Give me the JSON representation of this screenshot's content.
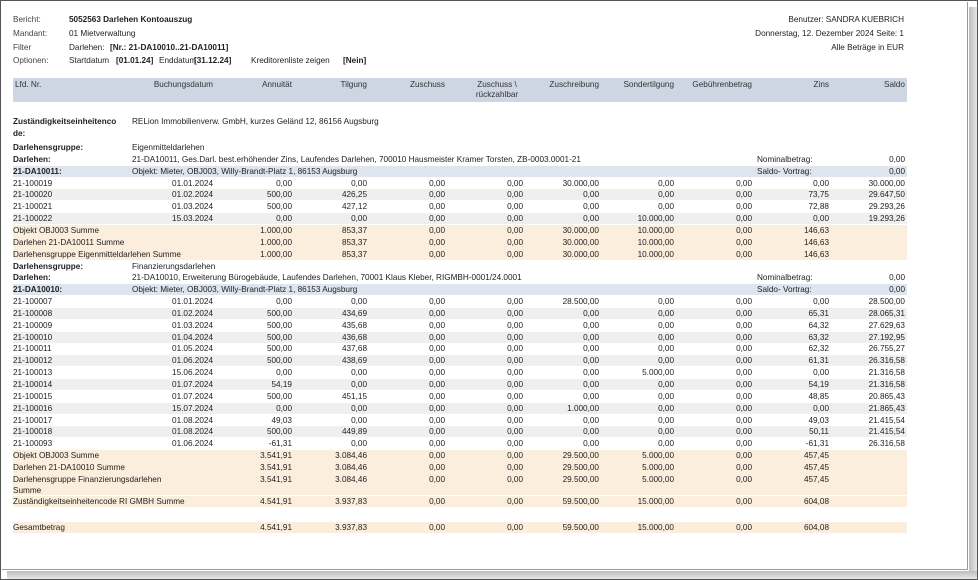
{
  "header": {
    "bericht_label": "Bericht:",
    "bericht_value": "5052563 Darlehen Kontoauszug",
    "mandant_label": "Mandant:",
    "mandant_value": "01 Mietverwaltung",
    "filter_label": "Filter",
    "filter_prefix": "Darlehen:",
    "filter_value": "[Nr.: 21-DA10010..21-DA10011]",
    "optionen_label": "Optionen:",
    "opt_start_label": "Startdatum",
    "opt_start_value": "[01.01.24]",
    "opt_end_label": "Enddatum",
    "opt_end_value": "[31.12.24]",
    "opt_kred_label": "Kreditorenliste zeigen",
    "opt_kred_value": "[Nein]",
    "benutzer": "Benutzer: SANDRA KUEBRICH",
    "datum": "Donnerstag, 12. Dezember 2024 Seite: 1",
    "waehrung": "Alle Beträge in EUR"
  },
  "columns": {
    "lfd": "Lfd. Nr.",
    "buchungsdatum": "Buchungsdatum",
    "annuitaet": "Annuität",
    "tilgung": "Tilgung",
    "zuschuss": "Zuschuss",
    "zuschuss_rz_1": "Zuschuss \\",
    "zuschuss_rz_2": "rückzahlbar",
    "zuschreibung": "Zuschreibung",
    "sondertilgung": "Sondertilgung",
    "gebuehren": "Gebührenbetrag",
    "zins": "Zins",
    "saldo": "Saldo"
  },
  "zust": {
    "label_1": "Zuständigkeitseinheitenco",
    "label_2": "de:",
    "value": "RELion Immobilienverw. GmbH, kurzes Geländ 12, 86156 Augsburg"
  },
  "groups": [
    {
      "gruppe_label": "Darlehensgruppe:",
      "gruppe_value": "Eigenmitteldarlehen",
      "darlehen_label": "Darlehen:",
      "darlehen_value": "21-DA10011, Ges.Darl. best.erhöhender Zins, Laufendes Darlehen, 700010 Hausmeister Kramer Torsten, ZB-0003.0001-21",
      "nominal_label": "Nominalbetrag:",
      "nominal_value": "0,00",
      "objekt_nr": "21-DA10011:",
      "objekt_value": "Objekt: Mieter, OBJ003, Willy-Brandt-Platz 1, 86153 Augsburg",
      "saldo_vortrag_label": "Saldo- Vortrag:",
      "saldo_vortrag_value": "0,00",
      "rows": [
        {
          "nr": "21-100019",
          "datum": "01.01.2024",
          "ann": "0,00",
          "til": "0,00",
          "zus": "0,00",
          "zrz": "0,00",
          "zsch": "30.000,00",
          "sond": "0,00",
          "geb": "0,00",
          "zins": "0,00",
          "saldo": "30.000,00"
        },
        {
          "nr": "21-100020",
          "datum": "01.02.2024",
          "ann": "500,00",
          "til": "426,25",
          "zus": "0,00",
          "zrz": "0,00",
          "zsch": "0,00",
          "sond": "0,00",
          "geb": "0,00",
          "zins": "73,75",
          "saldo": "29.647,50"
        },
        {
          "nr": "21-100021",
          "datum": "01.03.2024",
          "ann": "500,00",
          "til": "427,12",
          "zus": "0,00",
          "zrz": "0,00",
          "zsch": "0,00",
          "sond": "0,00",
          "geb": "0,00",
          "zins": "72,88",
          "saldo": "29.293,26"
        },
        {
          "nr": "21-100022",
          "datum": "15.03.2024",
          "ann": "0,00",
          "til": "0,00",
          "zus": "0,00",
          "zrz": "0,00",
          "zsch": "0,00",
          "sond": "10.000,00",
          "geb": "0,00",
          "zins": "0,00",
          "saldo": "19.293,26"
        }
      ],
      "sums": [
        {
          "label": "Objekt OBJ003 Summe",
          "ann": "1.000,00",
          "til": "853,37",
          "zus": "0,00",
          "zrz": "0,00",
          "zsch": "30.000,00",
          "sond": "10.000,00",
          "geb": "0,00",
          "zins": "146,63"
        },
        {
          "label": "Darlehen 21-DA10011 Summe",
          "ann": "1.000,00",
          "til": "853,37",
          "zus": "0,00",
          "zrz": "0,00",
          "zsch": "30.000,00",
          "sond": "10.000,00",
          "geb": "0,00",
          "zins": "146,63"
        },
        {
          "label": "Darlehensgruppe Eigenmitteldarlehen Summe",
          "ann": "1.000,00",
          "til": "853,37",
          "zus": "0,00",
          "zrz": "0,00",
          "zsch": "30.000,00",
          "sond": "10.000,00",
          "geb": "0,00",
          "zins": "146,63"
        }
      ]
    },
    {
      "gruppe_label": "Darlehensgruppe:",
      "gruppe_value": "Finanzierungsdarlehen",
      "darlehen_label": "Darlehen:",
      "darlehen_value": "21-DA10010, Erweiterung Bürogebäude, Laufendes Darlehen, 70001 Klaus Kleber, RIGMBH-0001/24.0001",
      "nominal_label": "Nominalbetrag:",
      "nominal_value": "0,00",
      "objekt_nr": "21-DA10010:",
      "objekt_value": "Objekt: Mieter, OBJ003, Willy-Brandt-Platz 1, 86153 Augsburg",
      "saldo_vortrag_label": "Saldo- Vortrag:",
      "saldo_vortrag_value": "0,00",
      "rows": [
        {
          "nr": "21-100007",
          "datum": "01.01.2024",
          "ann": "0,00",
          "til": "0,00",
          "zus": "0,00",
          "zrz": "0,00",
          "zsch": "28.500,00",
          "sond": "0,00",
          "geb": "0,00",
          "zins": "0,00",
          "saldo": "28.500,00"
        },
        {
          "nr": "21-100008",
          "datum": "01.02.2024",
          "ann": "500,00",
          "til": "434,69",
          "zus": "0,00",
          "zrz": "0,00",
          "zsch": "0,00",
          "sond": "0,00",
          "geb": "0,00",
          "zins": "65,31",
          "saldo": "28.065,31"
        },
        {
          "nr": "21-100009",
          "datum": "01.03.2024",
          "ann": "500,00",
          "til": "435,68",
          "zus": "0,00",
          "zrz": "0,00",
          "zsch": "0,00",
          "sond": "0,00",
          "geb": "0,00",
          "zins": "64,32",
          "saldo": "27.629,63"
        },
        {
          "nr": "21-100010",
          "datum": "01.04.2024",
          "ann": "500,00",
          "til": "436,68",
          "zus": "0,00",
          "zrz": "0,00",
          "zsch": "0,00",
          "sond": "0,00",
          "geb": "0,00",
          "zins": "63,32",
          "saldo": "27.192,95"
        },
        {
          "nr": "21-100011",
          "datum": "01.05.2024",
          "ann": "500,00",
          "til": "437,68",
          "zus": "0,00",
          "zrz": "0,00",
          "zsch": "0,00",
          "sond": "0,00",
          "geb": "0,00",
          "zins": "62,32",
          "saldo": "26.755,27"
        },
        {
          "nr": "21-100012",
          "datum": "01.06.2024",
          "ann": "500,00",
          "til": "438,69",
          "zus": "0,00",
          "zrz": "0,00",
          "zsch": "0,00",
          "sond": "0,00",
          "geb": "0,00",
          "zins": "61,31",
          "saldo": "26.316,58"
        },
        {
          "nr": "21-100013",
          "datum": "15.06.2024",
          "ann": "0,00",
          "til": "0,00",
          "zus": "0,00",
          "zrz": "0,00",
          "zsch": "0,00",
          "sond": "5.000,00",
          "geb": "0,00",
          "zins": "0,00",
          "saldo": "21.316,58"
        },
        {
          "nr": "21-100014",
          "datum": "01.07.2024",
          "ann": "54,19",
          "til": "0,00",
          "zus": "0,00",
          "zrz": "0,00",
          "zsch": "0,00",
          "sond": "0,00",
          "geb": "0,00",
          "zins": "54,19",
          "saldo": "21.316,58"
        },
        {
          "nr": "21-100015",
          "datum": "01.07.2024",
          "ann": "500,00",
          "til": "451,15",
          "zus": "0,00",
          "zrz": "0,00",
          "zsch": "0,00",
          "sond": "0,00",
          "geb": "0,00",
          "zins": "48,85",
          "saldo": "20.865,43"
        },
        {
          "nr": "21-100016",
          "datum": "15.07.2024",
          "ann": "0,00",
          "til": "0,00",
          "zus": "0,00",
          "zrz": "0,00",
          "zsch": "1.000,00",
          "sond": "0,00",
          "geb": "0,00",
          "zins": "0,00",
          "saldo": "21.865,43"
        },
        {
          "nr": "21-100017",
          "datum": "01.08.2024",
          "ann": "49,03",
          "til": "0,00",
          "zus": "0,00",
          "zrz": "0,00",
          "zsch": "0,00",
          "sond": "0,00",
          "geb": "0,00",
          "zins": "49,03",
          "saldo": "21.415,54"
        },
        {
          "nr": "21-100018",
          "datum": "01.08.2024",
          "ann": "500,00",
          "til": "449,89",
          "zus": "0,00",
          "zrz": "0,00",
          "zsch": "0,00",
          "sond": "0,00",
          "geb": "0,00",
          "zins": "50,11",
          "saldo": "21.415,54"
        },
        {
          "nr": "21-100093",
          "datum": "01.06.2024",
          "ann": "-61,31",
          "til": "0,00",
          "zus": "0,00",
          "zrz": "0,00",
          "zsch": "0,00",
          "sond": "0,00",
          "geb": "0,00",
          "zins": "-61,31",
          "saldo": "26.316,58"
        }
      ],
      "sums": [
        {
          "label": "Objekt OBJ003 Summe",
          "ann": "3.541,91",
          "til": "3.084,46",
          "zus": "0,00",
          "zrz": "0,00",
          "zsch": "29.500,00",
          "sond": "5.000,00",
          "geb": "0,00",
          "zins": "457,45"
        },
        {
          "label": "Darlehen 21-DA10010 Summe",
          "ann": "3.541,91",
          "til": "3.084,46",
          "zus": "0,00",
          "zrz": "0,00",
          "zsch": "29.500,00",
          "sond": "5.000,00",
          "geb": "0,00",
          "zins": "457,45"
        },
        {
          "label": "Darlehensgruppe Finanzierungsdarlehen",
          "label2": "Summe",
          "ann": "3.541,91",
          "til": "3.084,46",
          "zus": "0,00",
          "zrz": "0,00",
          "zsch": "29.500,00",
          "sond": "5.000,00",
          "geb": "0,00",
          "zins": "457,45"
        }
      ]
    }
  ],
  "zust_sum": {
    "label": "Zuständigkeitseinheitencode RI GMBH Summe",
    "ann": "4.541,91",
    "til": "3.937,83",
    "zus": "0,00",
    "zrz": "0,00",
    "zsch": "59.500,00",
    "sond": "15.000,00",
    "geb": "0,00",
    "zins": "604,08"
  },
  "gesamt": {
    "label": "Gesamtbetrag",
    "ann": "4.541,91",
    "til": "3.937,83",
    "zus": "0,00",
    "zrz": "0,00",
    "zsch": "59.500,00",
    "sond": "15.000,00",
    "geb": "0,00",
    "zins": "604,08"
  }
}
